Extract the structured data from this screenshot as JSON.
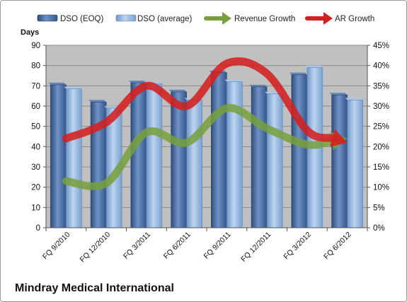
{
  "footer_title": "Mindray Medical International",
  "chart_data": {
    "type": "bar",
    "categories": [
      "FQ 9/2010",
      "FQ 12/2010",
      "FQ 3/2011",
      "FQ 6/2011",
      "FQ 9/2011",
      "FQ 12/2011",
      "FQ 3/2012",
      "FQ 6/2012"
    ],
    "ylabel": "Days",
    "ylim": [
      0,
      90
    ],
    "y2lim": [
      0,
      0.45
    ],
    "y_ticks": [
      0,
      10,
      20,
      30,
      40,
      50,
      60,
      70,
      80,
      90
    ],
    "y2_ticks": [
      "0%",
      "5%",
      "10%",
      "15%",
      "20%",
      "25%",
      "30%",
      "35%",
      "40%",
      "45%"
    ],
    "grid": true,
    "legend_position": "top",
    "bar_series": [
      {
        "name": "DSO (EOQ)",
        "values": [
          70.5,
          62,
          71.5,
          67,
          76.5,
          69.5,
          75.5,
          65.5
        ],
        "color": "#4a6fa5"
      },
      {
        "name": "DSO (average)",
        "values": [
          68.5,
          59,
          71,
          63,
          72,
          66,
          79,
          63
        ],
        "color": "#8fb4de"
      }
    ],
    "line_series": [
      {
        "name": "Revenue Growth",
        "axis": "right",
        "values": [
          0.115,
          0.11,
          0.235,
          0.21,
          0.295,
          0.245,
          0.205,
          0.22
        ],
        "color": "#77a03c"
      },
      {
        "name": "AR Growth",
        "axis": "right",
        "values": [
          0.22,
          0.26,
          0.35,
          0.3,
          0.405,
          0.38,
          0.24,
          0.21
        ],
        "color": "#d42020"
      }
    ],
    "plot_background": "#c0c0c0"
  }
}
